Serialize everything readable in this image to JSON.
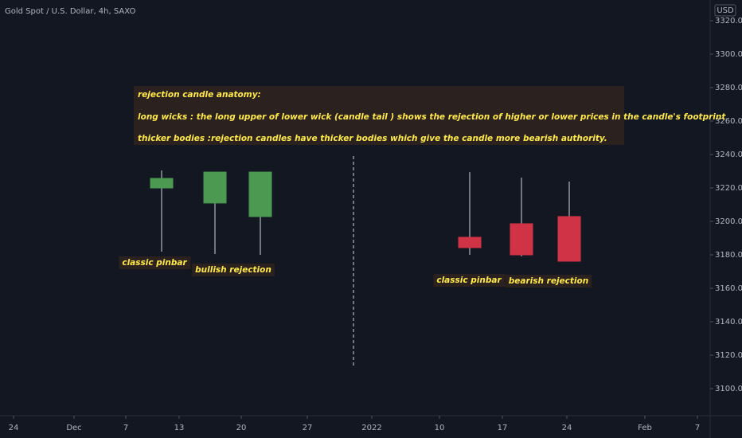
{
  "chart_data": {
    "type": "candlestick",
    "title": "Gold Spot / U.S. Dollar, 4h, SAXO",
    "currency": "USD",
    "x": [
      20.3,
      27,
      32.7,
      59,
      65.5,
      71.5
    ],
    "open": [
      3220.0,
      3211.0,
      3202.9,
      3190.5,
      3198.6,
      3202.9
    ],
    "high": [
      3230.5,
      3229.5,
      3229.5,
      3229.5,
      3226.2,
      3223.8
    ],
    "low": [
      3181.9,
      3180.5,
      3180.0,
      3180.0,
      3179.1,
      3176.2
    ],
    "close": [
      3225.7,
      3229.5,
      3229.5,
      3184.3,
      3180.0,
      3176.2
    ],
    "up_color": "#4c9a52",
    "down_color": "#d03345",
    "xlim": [
      0,
      89.2
    ],
    "xticks": [
      {
        "value": 1.7,
        "label": "24"
      },
      {
        "value": 9.3,
        "label": "Dec"
      },
      {
        "value": 15.8,
        "label": "7"
      },
      {
        "value": 22.5,
        "label": "13"
      },
      {
        "value": 30.3,
        "label": "20"
      },
      {
        "value": 38.6,
        "label": "27"
      },
      {
        "value": 46.7,
        "label": "2022"
      },
      {
        "value": 55.2,
        "label": "10"
      },
      {
        "value": 63.1,
        "label": "17"
      },
      {
        "value": 71.2,
        "label": "24"
      },
      {
        "value": 81,
        "label": "Feb"
      },
      {
        "value": 87.6,
        "label": "7"
      }
    ],
    "ylim": [
      3083.8,
      3332.4
    ],
    "yticks": [
      {
        "value": 3100,
        "label": "3100.00"
      },
      {
        "value": 3120,
        "label": "3120.00"
      },
      {
        "value": 3140,
        "label": "3140.00"
      },
      {
        "value": 3160,
        "label": "3160.00"
      },
      {
        "value": 3180,
        "label": "3180.00"
      },
      {
        "value": 3200,
        "label": "3200.00"
      },
      {
        "value": 3220,
        "label": "3220.00"
      },
      {
        "value": 3240,
        "label": "3240.00"
      },
      {
        "value": 3260,
        "label": "3260.00"
      },
      {
        "value": 3280,
        "label": "3280.00"
      },
      {
        "value": 3300,
        "label": "3300.00"
      },
      {
        "value": 3320,
        "label": "3320.00"
      }
    ],
    "note_lines": [
      "rejection candle anatomy:",
      "long wicks : the long upper of lower wick (candle tail ) shows the rejection of higher or lower prices in the candle's footprint",
      "thicker bodies :rejection candles have thicker bodies which give the candle more bearish authority."
    ],
    "labels": [
      "classic pinbar",
      "bullish rejection",
      "classic pinbar",
      "bearish rejection"
    ]
  }
}
